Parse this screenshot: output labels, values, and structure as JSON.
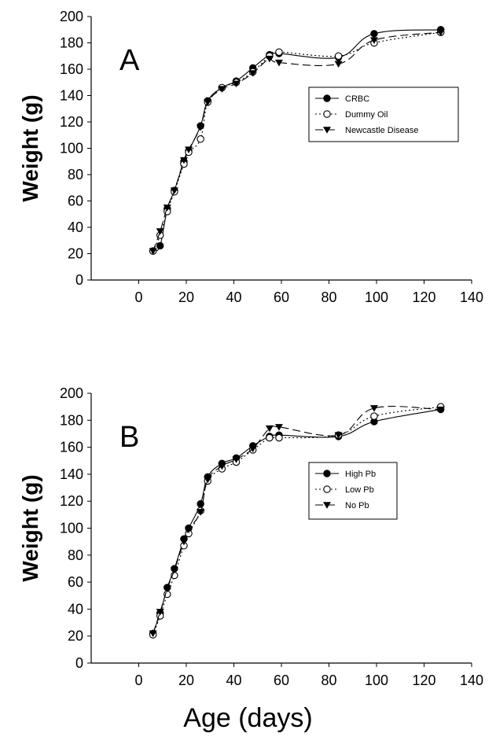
{
  "xlabel": "Age (days)",
  "chart_data": [
    {
      "type": "line",
      "panel_label": "A",
      "ylabel": "Weight (g)",
      "xlim": [
        -20,
        140
      ],
      "ylim": [
        0,
        200
      ],
      "x_ticks": [
        "0",
        "20",
        "40",
        "60",
        "80",
        "100",
        "120",
        "140"
      ],
      "y_ticks": [
        "0",
        "20",
        "40",
        "60",
        "80",
        "100",
        "120",
        "140",
        "160",
        "180",
        "200"
      ],
      "legend_position": "middle-right",
      "series": [
        {
          "name": "CRBC",
          "marker": "filled-circle",
          "dash": "",
          "x": [
            6,
            9,
            12,
            15,
            19,
            21,
            26,
            29,
            35,
            41,
            48,
            55,
            59,
            84,
            99,
            127
          ],
          "y": [
            22,
            26,
            54,
            68,
            90,
            98,
            117,
            136,
            146,
            151,
            161,
            171,
            172,
            169,
            187,
            190
          ]
        },
        {
          "name": "Dummy Oil",
          "marker": "open-circle",
          "dash": "2,3",
          "x": [
            6,
            9,
            12,
            15,
            19,
            21,
            26,
            29,
            35,
            41,
            48,
            55,
            59,
            84,
            99,
            127
          ],
          "y": [
            22,
            34,
            52,
            67,
            88,
            97,
            107,
            135,
            146,
            150,
            158,
            170,
            173,
            170,
            180,
            188
          ]
        },
        {
          "name": "Newcastle Disease",
          "marker": "down-triangle",
          "dash": "10,5",
          "x": [
            6,
            9,
            12,
            15,
            19,
            21,
            26,
            29,
            35,
            41,
            48,
            55,
            59,
            84,
            99,
            127
          ],
          "y": [
            22,
            37,
            55,
            68,
            91,
            99,
            116,
            135,
            145,
            149,
            157,
            168,
            165,
            164,
            182,
            188
          ]
        }
      ]
    },
    {
      "type": "line",
      "panel_label": "B",
      "ylabel": "Weight (g)",
      "xlim": [
        -20,
        140
      ],
      "ylim": [
        0,
        200
      ],
      "x_ticks": [
        "0",
        "20",
        "40",
        "60",
        "80",
        "100",
        "120",
        "140"
      ],
      "y_ticks": [
        "0",
        "20",
        "40",
        "60",
        "80",
        "100",
        "120",
        "140",
        "160",
        "180",
        "200"
      ],
      "legend_position": "middle-right",
      "series": [
        {
          "name": "High Pb",
          "marker": "filled-circle",
          "dash": "",
          "x": [
            6,
            9,
            12,
            15,
            19,
            21,
            26,
            29,
            35,
            41,
            48,
            55,
            59,
            84,
            99,
            127
          ],
          "y": [
            22,
            37,
            56,
            70,
            92,
            100,
            118,
            138,
            148,
            152,
            161,
            168,
            169,
            168,
            179,
            188
          ]
        },
        {
          "name": "Low Pb",
          "marker": "open-circle",
          "dash": "2,3",
          "x": [
            6,
            9,
            12,
            15,
            19,
            21,
            26,
            29,
            35,
            41,
            48,
            55,
            59,
            84,
            99,
            127
          ],
          "y": [
            21,
            35,
            51,
            65,
            87,
            96,
            113,
            135,
            144,
            149,
            158,
            167,
            167,
            169,
            183,
            190
          ]
        },
        {
          "name": "No Pb",
          "marker": "down-triangle",
          "dash": "10,5",
          "x": [
            6,
            9,
            12,
            15,
            19,
            21,
            26,
            29,
            35,
            41,
            48,
            55,
            59,
            84,
            99,
            127
          ],
          "y": [
            22,
            38,
            55,
            69,
            90,
            99,
            112,
            136,
            146,
            151,
            159,
            174,
            175,
            169,
            189,
            188
          ]
        }
      ]
    }
  ]
}
